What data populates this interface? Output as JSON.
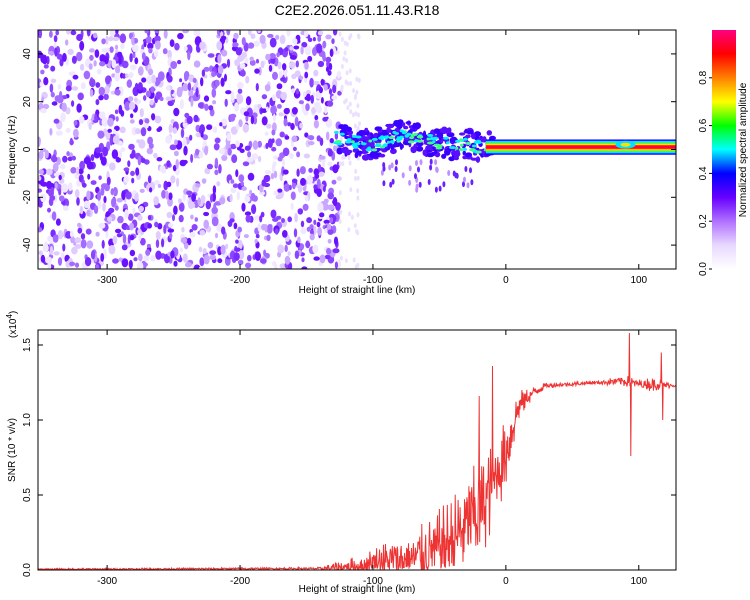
{
  "chart_data": [
    {
      "type": "heatmap",
      "title": "C2E2.2026.051.11.43.R18",
      "xlabel": "Height of straight line (km)",
      "ylabel": "Frequency (Hz)",
      "xlim": [
        -352,
        128
      ],
      "ylim": [
        -50,
        50
      ],
      "xticks": [
        -300,
        -200,
        -100,
        0,
        100
      ],
      "yticks": [
        -40,
        -20,
        0,
        20,
        40
      ],
      "noise_region_x": [
        -352,
        -125
      ],
      "signal_trace": {
        "x": [
          -130,
          -120,
          -110,
          -100,
          -90,
          -80,
          -70,
          -60,
          -50,
          -40,
          -30,
          -20,
          -10,
          0,
          20,
          40,
          60,
          80,
          90,
          100,
          128
        ],
        "center_hz": [
          5,
          4,
          3,
          2,
          4,
          6,
          5,
          4,
          3,
          2,
          2,
          1,
          1,
          1,
          1,
          1,
          1,
          1,
          2,
          1,
          1
        ],
        "amplitude": [
          0.25,
          0.25,
          0.2,
          0.3,
          0.3,
          0.35,
          0.35,
          0.35,
          0.35,
          0.4,
          0.45,
          0.5,
          0.6,
          0.7,
          0.8,
          0.85,
          0.85,
          0.85,
          0.9,
          0.85,
          0.85
        ]
      },
      "colorbar": {
        "label": "Normalized spectral amplitude",
        "range": [
          0,
          1
        ],
        "ticks": [
          0.0,
          0.2,
          0.4,
          0.6,
          0.8
        ],
        "tick_labels": [
          "0.0",
          "0.2",
          "0.4",
          "0.6",
          "0.8"
        ],
        "colors": [
          "#ffffff",
          "#e8d8ff",
          "#b070ff",
          "#6600ff",
          "#0000ff",
          "#00ffff",
          "#00ff00",
          "#ffff00",
          "#ff8000",
          "#ff0000",
          "#ff0080"
        ]
      }
    },
    {
      "type": "line",
      "xlabel": "Height of straight line (km)",
      "ylabel": "SNR (10 * v/v)",
      "y_multiplier_label": "(x10",
      "y_multiplier_exp": "4",
      "y_multiplier_close": ")",
      "xlim": [
        -352,
        128
      ],
      "ylim": [
        0,
        1.6
      ],
      "xticks": [
        -300,
        -200,
        -100,
        0,
        100
      ],
      "yticks": [
        0.0,
        0.5,
        1.0,
        1.5
      ],
      "ytick_labels": [
        "0.0",
        "0.5",
        "1.0",
        "1.5"
      ],
      "line_color": "#ee3333",
      "envelope": {
        "x": [
          -352,
          -140,
          -110,
          -100,
          -80,
          -60,
          -40,
          -20,
          -10,
          0,
          10,
          20,
          30,
          50,
          70,
          90,
          100,
          110,
          128
        ],
        "base": [
          0.005,
          0.01,
          0.02,
          0.05,
          0.06,
          0.1,
          0.2,
          0.4,
          0.55,
          0.8,
          1.1,
          1.18,
          1.23,
          1.24,
          1.25,
          1.26,
          1.24,
          1.24,
          1.23
        ],
        "amp": [
          0.006,
          0.008,
          0.08,
          0.1,
          0.18,
          0.22,
          0.3,
          0.35,
          0.3,
          0.25,
          0.1,
          0.04,
          0.02,
          0.015,
          0.015,
          0.04,
          0.03,
          0.05,
          0.01
        ]
      },
      "spikes": [
        {
          "x": 93,
          "y": 1.58
        },
        {
          "x": 94,
          "y": 0.76
        },
        {
          "x": 117,
          "y": 1.45
        },
        {
          "x": 118,
          "y": 1.0
        },
        {
          "x": -10,
          "y": 1.36
        },
        {
          "x": -20,
          "y": 1.16
        }
      ]
    }
  ]
}
